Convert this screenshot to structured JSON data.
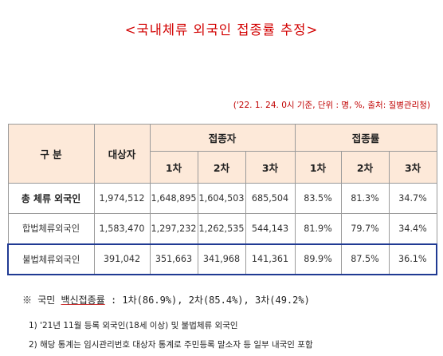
{
  "title": "<국내체류 외국인 접종률 추정>",
  "source_note": "('22. 1. 24. 0시 기준, 단위 : 명, %, 출처: 질병관리청)",
  "table": {
    "header": {
      "category": "구 분",
      "target": "대상자",
      "vaccinated": "접종자",
      "rate": "접종률",
      "dose1": "1차",
      "dose2": "2차",
      "dose3": "3차"
    },
    "rows": [
      {
        "label": "총 체류 외국인",
        "target": "1,974,512",
        "v1": "1,648,895",
        "v2": "1,604,503",
        "v3": "685,504",
        "r1": "83.5%",
        "r2": "81.3%",
        "r3": "34.7%"
      },
      {
        "label": "합법체류외국인",
        "target": "1,583,470",
        "v1": "1,297,232",
        "v2": "1,262,535",
        "v3": "544,143",
        "r1": "81.9%",
        "r2": "79.7%",
        "r3": "34.4%"
      },
      {
        "label": "불법체류외국인",
        "target": "391,042",
        "v1": "351,663",
        "v2": "341,968",
        "v3": "141,361",
        "r1": "89.9%",
        "r2": "87.5%",
        "r3": "36.1%"
      }
    ]
  },
  "notes": {
    "national_rate_prefix": "※ 국민 ",
    "national_rate_label": "백신접종률",
    "national_rate_rest": " : 1차(86.9%), 2차(85.4%), 3차(49.2%)",
    "note1": "1) '21년 11월 등록 외국인(18세 이상) 및 불법체류 외국인",
    "note2": "2) 해당 통계는 임시관리번호 대상자 통계로 주민등록 말소자 등 일부 내국인 포함"
  }
}
